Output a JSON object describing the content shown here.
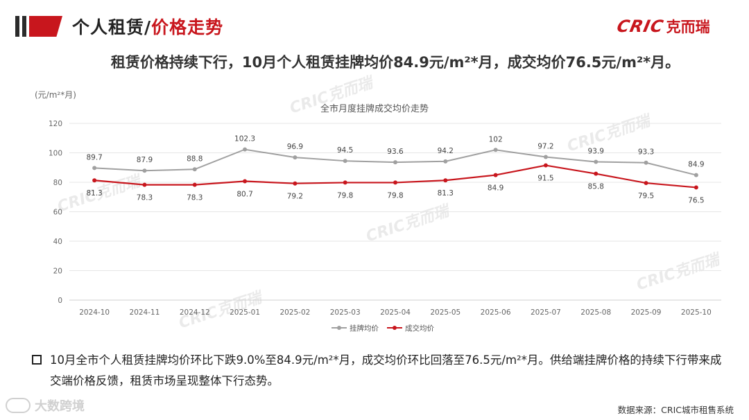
{
  "header": {
    "title_part1": "个人租赁/",
    "title_part2": "价格走势"
  },
  "logo": {
    "brand": "CRIC",
    "brand_cn": "克而瑞"
  },
  "headline": "租赁价格持续下行，10月个人租赁挂牌均价84.9元/m²*月，成交均价76.5元/m²*月。",
  "note": "10月全市个人租赁挂牌均价环比下跌9.0%至84.9元/m²*月，成交均价环比回落至76.5元/m²*月。供给端挂牌价格的持续下行带来成交端价格反馈，租赁市场呈现整体下行态势。",
  "source": "数据来源：CRIC城市租售系统",
  "corner_logo": "大数跨境",
  "watermark_text": "CRIC克而瑞",
  "colors": {
    "accent": "#c8161d",
    "listing": "#a0a0a0",
    "transaction": "#c8161d"
  },
  "chart_data": {
    "type": "line",
    "title": "全市月度挂牌成交均价走势",
    "ylabel": "(元/m²*月)",
    "xlabel": "",
    "categories": [
      "2024-10",
      "2024-11",
      "2024-12",
      "2025-01",
      "2025-02",
      "2025-03",
      "2025-04",
      "2025-05",
      "2025-06",
      "2025-07",
      "2025-08",
      "2025-09",
      "2025-10"
    ],
    "yticks": [
      0,
      20,
      40,
      60,
      80,
      100,
      120
    ],
    "ylim": [
      0,
      120
    ],
    "grid": true,
    "legend": "bottom-center",
    "series": [
      {
        "name": "挂牌均价",
        "color": "#a0a0a0",
        "labels": "above",
        "values": [
          89.7,
          87.9,
          88.8,
          102.3,
          96.9,
          94.5,
          93.6,
          94.2,
          102,
          97.2,
          93.9,
          93.3,
          84.9
        ]
      },
      {
        "name": "成交均价",
        "color": "#c8161d",
        "labels": "below",
        "values": [
          81.3,
          78.3,
          78.3,
          80.7,
          79.2,
          79.8,
          79.8,
          81.3,
          84.9,
          91.5,
          85.8,
          79.5,
          76.5
        ]
      }
    ]
  }
}
